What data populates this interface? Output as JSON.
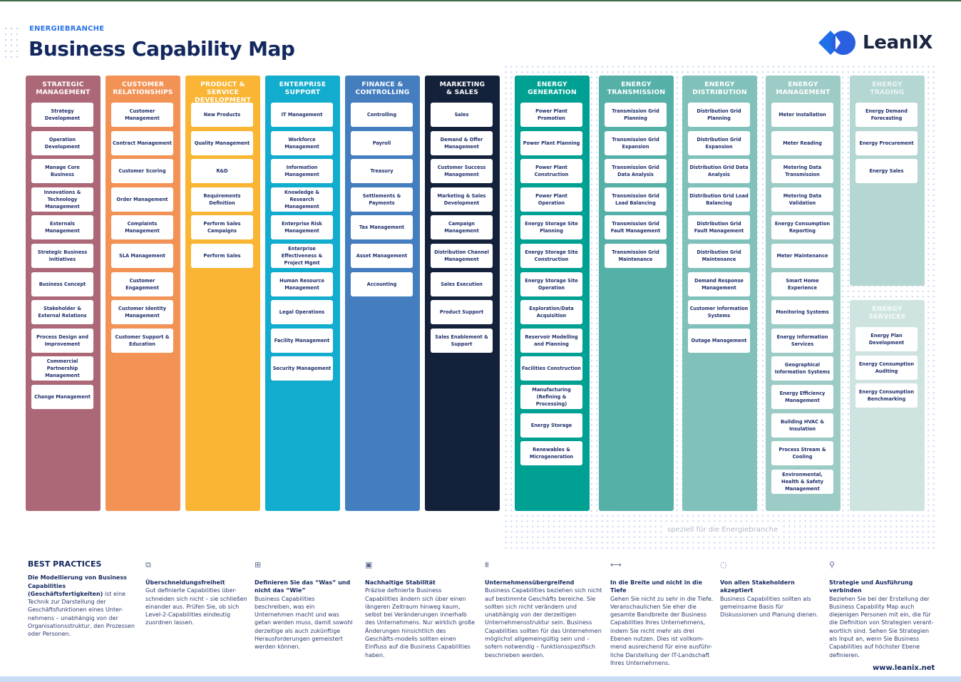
{
  "header": {
    "eyebrow": "ENERGIEBRANCHE",
    "title": "Business Capability Map",
    "logo_text": "LeanIX",
    "logo_icon": "leanix-logo-icon"
  },
  "colors": {
    "strategic": "#ad6878",
    "customer": "#f29255",
    "product": "#f9b533",
    "enterprise": "#12acce",
    "finance": "#457ebf",
    "marketing": "#14213a",
    "generation": "#00a093",
    "transmission": "#55b0a8",
    "distribution": "#80c2bb",
    "management": "#9dcbc5",
    "trading": "#b5d7d3",
    "services": "#cfe4e1",
    "title": "#13285e",
    "accent": "#2a74e8"
  },
  "columns": [
    {
      "title": "STRATEGIC\nMANAGEMENT",
      "items": [
        "Strategy Development",
        "Operation Development",
        "Manage Core Business",
        "Innovations & Technology Management",
        "Externals Management",
        "Strategic Business Initiatives",
        "Business Concept",
        "Stakeholder & External Relations",
        "Process Design and Improvement",
        "Commercial Partnership Management",
        "Change Management"
      ]
    },
    {
      "title": "CUSTOMER\nRELATIONSHIPS",
      "items": [
        "Customer Management",
        "Contract Management",
        "Customer Scoring",
        "Order Management",
        "Complaints Management",
        "SLA Management",
        "Customer Engagement",
        "Customer Identity Management",
        "Customer Support & Education"
      ]
    },
    {
      "title": "PRODUCT & SERVICE\nDEVELOPMENT",
      "items": [
        "New Products",
        "Quality Management",
        "R&D",
        "Requirements Definition",
        "Perform Sales Campaigns",
        "Perform Sales"
      ]
    },
    {
      "title": "ENTERPRISE\nSUPPORT",
      "items": [
        "IT Management",
        "Workforce Management",
        "Information Management",
        "Knowledge & Research Management",
        "Enterprise Risk Management",
        "Enterprise Effectiveness & Project Mgmt",
        "Human Resource Management",
        "Legal Operations",
        "Facility Management",
        "Security Management"
      ]
    },
    {
      "title": "FINANCE &\nCONTROLLING",
      "items": [
        "Controlling",
        "Payroll",
        "Treasury",
        "Settlements & Payments",
        "Tax Management",
        "Asset Management",
        "Accounting"
      ]
    },
    {
      "title": "MARKETING\n& SALES",
      "items": [
        "Sales",
        "Demand & Offer Management",
        "Customer Success Management",
        "Marketing & Sales Development",
        "Campaign Management",
        "Distribution Channel Management",
        "Sales Execution",
        "Product Support",
        "Sales Enablement & Support"
      ]
    },
    {
      "title": "ENERGY\nGENERATION",
      "items": [
        "Power Plant Promotion",
        "Power Plant Planning",
        "Power Plant Construction",
        "Power Plant Operation",
        "Energy Storage Site Planning",
        "Energy Storage Site Construction",
        "Energy Storage Site Operation",
        "Exploration/Data Acquisition",
        "Reservoir Modelling and Planning",
        "Facilities Construction",
        "Manufacturing (Refining & Processing)",
        "Energy Storage",
        "Renewables & Microgeneration"
      ]
    },
    {
      "title": "ENERGY\nTRANSMISSION",
      "items": [
        "Transmission Grid Planning",
        "Transmission Grid Expansion",
        "Transmission Grid Data Analysis",
        "Transmission Grid Load Balancing",
        "Transmission Grid Fault Management",
        "Transmission Grid Maintenance"
      ]
    },
    {
      "title": "ENERGY\nDISTRIBUTION",
      "items": [
        "Distribution Grid Planning",
        "Distribution Grid Expansion",
        "Distribution Grid Data Analysis",
        "Distribution Grid Load Balancing",
        "Distribution Grid Fault Management",
        "Distribution Grid Maintenance",
        "Demand Response Management",
        "Customer Information Systems",
        "Outage Management"
      ]
    },
    {
      "title": "ENERGY\nMANAGEMENT",
      "items": [
        "Meter Installation",
        "Meter Reading",
        "Metering Data Transmission",
        "Metering Data Validation",
        "Energy Consumption Reporting",
        "Meter Maintenance",
        "Smart Home Experience",
        "Monitoring Systems",
        "Energy Information Services",
        "Geographical Information Systems",
        "Energy Efficiency Management",
        "Building HVAC & Insulation",
        "Process Stream & Cooling",
        "Environmental, Health & Safety Management"
      ]
    },
    {
      "title": "ENERGY\nTRADING",
      "items": [
        "Energy Demand Forecasting",
        "Energy Procurement",
        "Energy Sales"
      ]
    },
    {
      "title": "ENERGY\nSERVICES",
      "items": [
        "Energy Plan Development",
        "Energy Consumption Auditing",
        "Energy Consumption Benchmarking"
      ]
    }
  ],
  "energy_zone_label": "speziell für die Energiebranche",
  "best_practices": {
    "heading": "BEST PRACTICES",
    "intro_title": "Die Modellierung von Business Capabilities (Geschäftsfertigkeiten)",
    "intro_body": " ist eine Technik zur Darstellung der Geschäftsfunktionen eines Unter-nehmens – unabhängig von der Organisationsstruktur, den Prozessen oder Personen.",
    "items": [
      {
        "icon": "puzzle-check-icon",
        "title": "Überschneidungsfreiheit",
        "body": "Gut definierte Capabilities über-schneiden sich nicht – sie schließen einander aus. Prüfen Sie, ob sich Level-2-Capabilities eindeutig zuordnen lassen."
      },
      {
        "icon": "puzzle-icon",
        "title": "Definieren Sie das “Was” und nicht das “Wie”",
        "body": "Business Capabilities beschreiben, was ein Unternehmen macht und was getan werden muss, damit sowohl derzeitige als auch zukünftige Herausforderungen gemeistert werden können."
      },
      {
        "icon": "calendar-icon",
        "title": "Nachhaltige Stabilität",
        "body": "Präzise definierte Business Capabilities ändern sich über einen längeren Zeitraum hinweg kaum, selbst bei Veränderungen innerhalb des Unternehmens. Nur wirklich große Änderungen hinsichtlich des Geschäfts-modells sollten einen Einfluss auf die Business Capabilities haben."
      },
      {
        "icon": "cross-unit-icon",
        "title": "Unternehmensübergreifend",
        "body": "Business Capabilities beziehen sich nicht auf bestimmte Geschäfts bereiche. Sie sollten sich nicht verändern und unabhängig von der derzeitigen Unternehmensstruktur sein. Business Capabilities sollten für das Unternehmen möglichst allgemeingültig sein und – sofern notwendig – funktionsspezifisch beschrieben werden."
      },
      {
        "icon": "width-arrows-icon",
        "title": "In die Breite und nicht in die Tiefe",
        "body": "Gehen Sie nicht zu sehr in die Tiefe. Veranschaulichen Sie eher die gesamte Bandbreite der Business Capabilities Ihres Unternehmens, indem Sie nicht mehr als drei Ebenen nutzen. Dies ist vollkom-mend ausreichend für eine ausführ-liche Darstellung der IT-Landschaft Ihres Unternehmens."
      },
      {
        "icon": "check-circle-icon",
        "title": "Von allen Stakeholdern akzeptiert",
        "body": "Business Capabilities sollten als gemeinsame Basis für Diskussionen und Planung dienen."
      },
      {
        "icon": "network-icon",
        "title": "Strategie und Ausführung verbinden",
        "body": "Beziehen Sie bei der Erstellung der Business Capability Map auch diejenigen Personen mit ein, die für die Definition von Strategien verant-wortlich sind. Sehen Sie Strategien als Input an, wenn Sie Business Capabilities auf höchster Ebene definieren."
      }
    ]
  },
  "footer": {
    "url": "www.leanix.net"
  }
}
